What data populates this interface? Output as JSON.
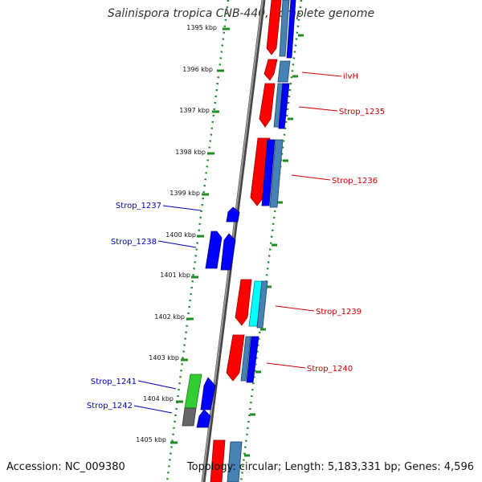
{
  "title": "Salinispora tropica CNB-440, complete genome",
  "footer": {
    "accession": "Accession: NC_009380",
    "summary": "Topology: circular; Length: 5,183,331 bp; Genes: 4,596"
  },
  "scale_labels": [
    "1395 kbp",
    "1396 kbp",
    "1397 kbp",
    "1398 kbp",
    "1399 kbp",
    "1400 kbp",
    "1401 kbp",
    "1402 kbp",
    "1403 kbp",
    "1404 kbp",
    "1405 kbp"
  ],
  "gene_labels": {
    "forward": [
      "ilvH",
      "Strop_1235",
      "Strop_1236",
      "Strop_1239",
      "Strop_1240"
    ],
    "reverse": [
      "Strop_1237",
      "Strop_1238",
      "Strop_1241",
      "Strop_1242"
    ]
  },
  "colors": {
    "forward_label": "#cc0000",
    "reverse_label": "#0000bb",
    "forward_gene": "#ff0000",
    "reverse_gene": "#0000ff",
    "steel": "#4682b4",
    "cyan": "#00ffff",
    "green": "#33cc33",
    "gray": "#666666",
    "backbone": "#777777",
    "ticks": "#228b22"
  }
}
